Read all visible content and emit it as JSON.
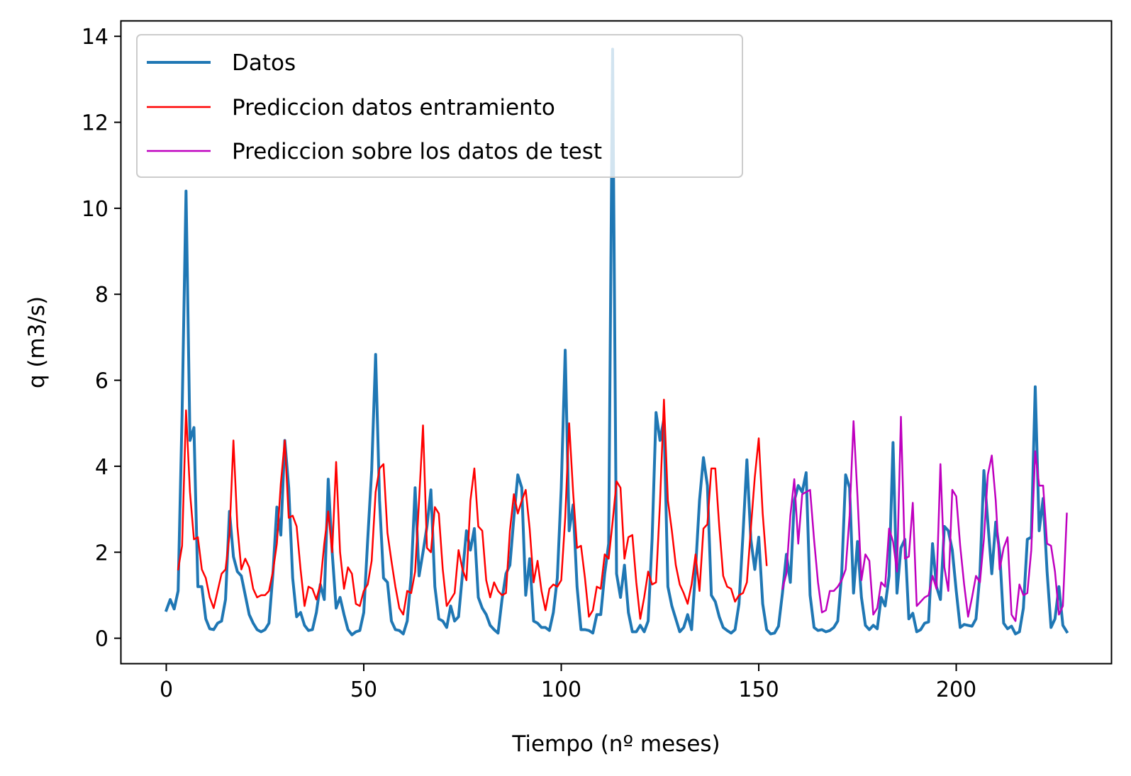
{
  "chart_data": {
    "type": "line",
    "title": "",
    "xlabel": "Tiempo (nº meses)",
    "ylabel": "q (m3/s)",
    "xlim": [
      -11.4,
      239.4
    ],
    "ylim": [
      -0.6,
      14.35
    ],
    "xticks": [
      0,
      50,
      100,
      150,
      200
    ],
    "yticks": [
      0,
      2,
      4,
      6,
      8,
      10,
      12,
      14
    ],
    "grid": false,
    "legend_position": "top-left",
    "series": [
      {
        "name": "Datos",
        "color": "#1f77b4",
        "x_start": 0,
        "values": [
          0.65,
          0.9,
          0.68,
          1.1,
          5.2,
          10.4,
          4.6,
          4.9,
          1.2,
          1.2,
          0.45,
          0.22,
          0.2,
          0.35,
          0.4,
          0.9,
          2.95,
          1.9,
          1.55,
          1.45,
          1.0,
          0.55,
          0.35,
          0.2,
          0.15,
          0.2,
          0.35,
          1.5,
          3.05,
          2.4,
          4.6,
          3.5,
          1.4,
          0.5,
          0.6,
          0.3,
          0.18,
          0.2,
          0.6,
          1.25,
          0.9,
          3.7,
          2.0,
          0.7,
          0.95,
          0.55,
          0.2,
          0.08,
          0.15,
          0.18,
          0.6,
          2.3,
          3.9,
          6.6,
          3.2,
          1.4,
          1.3,
          0.4,
          0.2,
          0.18,
          0.1,
          0.4,
          1.45,
          3.5,
          1.45,
          2.0,
          2.6,
          3.45,
          1.2,
          0.45,
          0.4,
          0.25,
          0.75,
          0.4,
          0.5,
          1.5,
          2.5,
          2.05,
          2.55,
          0.95,
          0.7,
          0.55,
          0.3,
          0.2,
          0.12,
          0.9,
          1.5,
          1.7,
          2.8,
          3.8,
          3.5,
          1.0,
          1.85,
          0.4,
          0.35,
          0.25,
          0.25,
          0.18,
          0.6,
          1.4,
          3.5,
          6.7,
          2.5,
          3.1,
          1.2,
          0.2,
          0.2,
          0.18,
          0.12,
          0.55,
          0.55,
          1.5,
          2.2,
          13.7,
          1.5,
          0.95,
          1.7,
          0.6,
          0.15,
          0.15,
          0.3,
          0.15,
          0.4,
          2.3,
          5.25,
          4.6,
          5.1,
          1.2,
          0.75,
          0.45,
          0.15,
          0.25,
          0.55,
          0.2,
          1.6,
          3.2,
          4.2,
          3.55,
          1.0,
          0.85,
          0.5,
          0.25,
          0.18,
          0.12,
          0.2,
          0.8,
          2.4,
          4.15,
          2.3,
          1.6,
          2.35,
          0.8,
          0.2,
          0.1,
          0.12,
          0.28,
          1.05,
          1.95,
          1.3,
          3.2,
          3.55,
          3.4,
          3.85,
          1.0,
          0.25,
          0.18,
          0.2,
          0.15,
          0.18,
          0.25,
          0.4,
          1.5,
          3.8,
          3.5,
          1.05,
          2.25,
          0.95,
          0.3,
          0.2,
          0.3,
          0.22,
          0.95,
          0.75,
          1.45,
          4.55,
          1.05,
          2.1,
          2.3,
          0.45,
          0.58,
          0.15,
          0.2,
          0.35,
          0.38,
          2.2,
          1.2,
          0.9,
          2.6,
          2.5,
          2.05,
          1.1,
          0.25,
          0.32,
          0.3,
          0.28,
          0.45,
          1.5,
          3.9,
          2.7,
          1.5,
          2.7,
          2.0,
          0.35,
          0.22,
          0.28,
          0.1,
          0.15,
          0.7,
          2.3,
          2.35,
          5.85,
          2.5,
          3.25,
          1.55,
          0.25,
          0.45,
          1.2,
          0.3,
          0.15
        ]
      },
      {
        "name": "Prediccion datos entramiento",
        "color": "#ff0000",
        "x_start": 3,
        "values": [
          1.6,
          2.15,
          5.3,
          3.4,
          2.3,
          2.35,
          1.6,
          1.4,
          0.95,
          0.7,
          1.1,
          1.5,
          1.6,
          2.4,
          4.6,
          2.6,
          1.6,
          1.85,
          1.65,
          1.15,
          0.95,
          1.0,
          1.0,
          1.1,
          1.55,
          2.2,
          3.6,
          4.6,
          2.8,
          2.85,
          2.6,
          1.6,
          0.75,
          1.2,
          1.15,
          0.9,
          1.25,
          2.2,
          2.95,
          2.0,
          4.1,
          2.0,
          1.15,
          1.65,
          1.5,
          0.8,
          0.75,
          1.1,
          1.25,
          1.8,
          3.4,
          3.95,
          4.05,
          2.45,
          1.8,
          1.2,
          0.7,
          0.55,
          1.1,
          1.05,
          1.55,
          3.2,
          4.95,
          2.1,
          2.0,
          3.05,
          2.9,
          1.6,
          0.75,
          0.9,
          1.05,
          2.05,
          1.6,
          1.35,
          3.2,
          3.95,
          2.6,
          2.5,
          1.35,
          0.95,
          1.3,
          1.1,
          1.0,
          1.05,
          2.5,
          3.35,
          2.9,
          3.2,
          3.45,
          2.55,
          1.3,
          1.8,
          1.1,
          0.65,
          1.15,
          1.25,
          1.2,
          1.35,
          2.8,
          5.0,
          3.4,
          2.1,
          2.15,
          1.4,
          0.5,
          0.65,
          1.2,
          1.15,
          1.95,
          1.85,
          2.7,
          3.65,
          3.5,
          1.85,
          2.35,
          2.4,
          1.3,
          0.45,
          0.95,
          1.55,
          1.25,
          1.3,
          3.15,
          5.55,
          3.2,
          2.5,
          1.7,
          1.25,
          1.05,
          0.8,
          1.25,
          1.95,
          1.1,
          2.55,
          2.65,
          3.95,
          3.95,
          2.6,
          1.45,
          1.2,
          1.15,
          0.85,
          1.0,
          1.05,
          1.3,
          2.55,
          3.75,
          4.65,
          2.9,
          1.7
        ]
      },
      {
        "name": "Prediccion sobre los datos de test",
        "color": "#bf00bf",
        "x_start": 156,
        "values": [
          1.15,
          1.5,
          2.85,
          3.7,
          2.2,
          3.35,
          3.4,
          3.45,
          2.3,
          1.3,
          0.6,
          0.65,
          1.1,
          1.1,
          1.2,
          1.35,
          1.6,
          2.85,
          5.05,
          3.3,
          1.35,
          1.95,
          1.8,
          0.55,
          0.7,
          1.3,
          1.2,
          2.55,
          2.25,
          1.55,
          5.15,
          1.85,
          1.9,
          3.15,
          0.75,
          0.85,
          0.95,
          1.0,
          1.45,
          1.15,
          4.05,
          1.65,
          1.1,
          3.45,
          3.3,
          2.15,
          1.25,
          0.5,
          0.95,
          1.45,
          1.3,
          2.3,
          3.8,
          4.25,
          3.2,
          1.6,
          2.1,
          2.35,
          0.55,
          0.4,
          1.25,
          1.0,
          1.05,
          2.05,
          4.35,
          3.55,
          3.55,
          2.2,
          2.15,
          1.55,
          0.55,
          0.75,
          2.9
        ]
      }
    ]
  }
}
